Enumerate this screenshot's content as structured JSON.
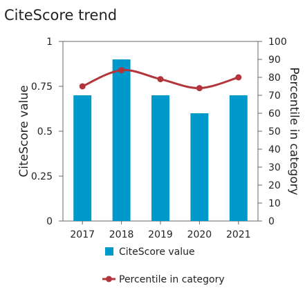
{
  "chart_data": {
    "type": "bar",
    "title": "CiteScore trend",
    "categories": [
      "2017",
      "2018",
      "2019",
      "2020",
      "2021"
    ],
    "ylabel": "CiteScore value",
    "y2label": "Percentile in category",
    "ylim": [
      0,
      1
    ],
    "y2lim": [
      0,
      100
    ],
    "yticks": [
      "0",
      "0.25",
      "0.5",
      "0.75",
      "1"
    ],
    "y2ticks": [
      "0",
      "10",
      "20",
      "30",
      "40",
      "50",
      "60",
      "70",
      "80",
      "90",
      "100"
    ],
    "grid": false,
    "legend_position": "bottom",
    "series": [
      {
        "name": "CiteScore value",
        "type": "bar",
        "axis": "left",
        "color": "#0099cc",
        "values": [
          0.7,
          0.9,
          0.7,
          0.6,
          0.7
        ]
      },
      {
        "name": "Percentile in category",
        "type": "line",
        "axis": "right",
        "color": "#b2353b",
        "values": [
          75,
          84,
          79,
          74,
          80
        ]
      }
    ]
  }
}
